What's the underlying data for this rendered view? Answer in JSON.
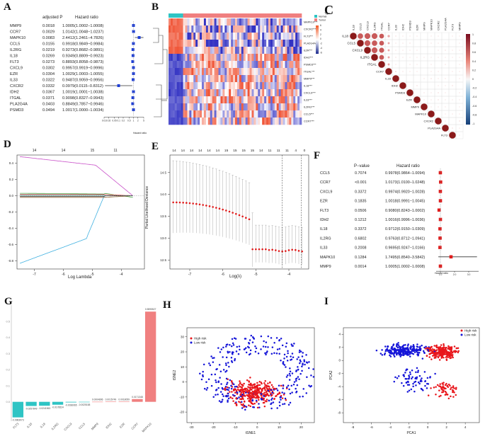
{
  "panel_labels": {
    "A": "A",
    "B": "B",
    "C": "C",
    "D": "D",
    "E": "E",
    "F": "F",
    "G": "G",
    "H": "H",
    "I": "I"
  },
  "A": {
    "header": {
      "p": "adjusted P",
      "hr": "Hazard ratio"
    },
    "axis_label": "Hazard ratio",
    "rows": [
      {
        "gene": "MMP9",
        "p": "0.0018",
        "hr": "1.0005(1.0002−1.0008)",
        "est": 1.0005,
        "lo": 1.0002,
        "hi": 1.0008
      },
      {
        "gene": "CCR7",
        "p": "0.0029",
        "hr": "1.0142(1.0048−1.0237)",
        "est": 1.0142,
        "lo": 1.0048,
        "hi": 1.0237
      },
      {
        "gene": "MAPK10",
        "p": "0.0083",
        "hr": "2.4412(1.2461−4.7826)",
        "est": 2.4412,
        "lo": 1.2461,
        "hi": 4.7826
      },
      {
        "gene": "CCL5",
        "p": "0.0155",
        "hr": "0.9918(0.9849−0.9984)",
        "est": 0.9918,
        "lo": 0.9849,
        "hi": 0.9984
      },
      {
        "gene": "IL2RG",
        "p": "0.0219",
        "hr": "0.9273(0.8682−0.9891)",
        "est": 0.9273,
        "lo": 0.8682,
        "hi": 0.9891
      },
      {
        "gene": "IL18",
        "p": "0.0269",
        "hr": "0.9349(0.8809−0.9923)",
        "est": 0.9349,
        "lo": 0.8809,
        "hi": 0.9923
      },
      {
        "gene": "FLT3",
        "p": "0.0273",
        "hr": "0.8893(0.8058−0.9873)",
        "est": 0.8893,
        "lo": 0.8058,
        "hi": 0.9873
      },
      {
        "gene": "CXCL9",
        "p": "0.0302",
        "hr": "0.9957(0.9919−0.9996)",
        "est": 0.9957,
        "lo": 0.9919,
        "hi": 0.9996
      },
      {
        "gene": "EZR",
        "p": "0.0304",
        "hr": "1.0029(1.0003−1.0055)",
        "est": 1.0029,
        "lo": 1.0003,
        "hi": 1.0055
      },
      {
        "gene": "IL33",
        "p": "0.0322",
        "hr": "0.9487(0.9059−0.9956)",
        "est": 0.9487,
        "lo": 0.9059,
        "hi": 0.9956
      },
      {
        "gene": "CXCR2",
        "p": "0.0332",
        "hr": "0.0979(0.0115−0.8312)",
        "est": 0.0979,
        "lo": 0.0115,
        "hi": 0.8312
      },
      {
        "gene": "IDH2",
        "p": "0.0367",
        "hr": "1.0019(1.0001−1.0038)",
        "est": 1.0019,
        "lo": 1.0001,
        "hi": 1.0038
      },
      {
        "gene": "ITGAL",
        "p": "0.0371",
        "hr": "0.9098(0.8327−0.9943)",
        "est": 0.9098,
        "lo": 0.8327,
        "hi": 0.9943
      },
      {
        "gene": "PLA2G4A",
        "p": "0.0403",
        "hr": "0.8849(0.7857−0.9946)",
        "est": 0.8849,
        "lo": 0.7857,
        "hi": 0.9946
      },
      {
        "gene": "PSMD3",
        "p": "0.0494",
        "hr": "1.0017(1.0000−1.0034)",
        "est": 1.0017,
        "lo": 1.0,
        "hi": 1.0034
      }
    ],
    "ticks": [
      "0.01",
      "0.02",
      "0.05",
      "0.1",
      "0.2",
      "0.5",
      "1",
      "2",
      "5"
    ]
  },
  "B": {
    "legend_title": "Type",
    "legend_items": [
      {
        "label": "Normal",
        "color": "#2ec4c4"
      },
      {
        "label": "Tumor",
        "color": "#f07f7f"
      }
    ],
    "scale_ticks": [
      "6",
      "4",
      "2",
      "0",
      "-2",
      "-4",
      "-6"
    ],
    "genes": [
      "MAPK10***",
      "CXCR2***",
      "FLT3***",
      "PLA2G4A***",
      "EZR***",
      "IDH2***",
      "PSMD3***",
      "ITGAL***",
      "MMP9***",
      "IL18***",
      "CXCL9***",
      "IL33***",
      "IL2RG***",
      "CCL5***",
      "CCR7***"
    ]
  },
  "C": {
    "genes": [
      "IL18",
      "CCL5",
      "CXCL9",
      "IL2RG",
      "ITGAL",
      "CCR7",
      "IL33",
      "IDH2",
      "PSMD3",
      "EZR",
      "MMP9",
      "MAPK10",
      "CXCR2",
      "PLA2G4A",
      "FLT3",
      "MMP9"
    ],
    "scale_ticks": [
      "1",
      "0.8",
      "0.6",
      "0.4",
      "0.2",
      "0",
      "-0.2",
      "-0.4",
      "-0.6",
      "-0.8",
      "-1"
    ]
  },
  "D": {
    "xlabel": "Log Lambda",
    "top_ticks": [
      "14",
      "14",
      "15",
      "11"
    ],
    "x_ticks": [
      "-7",
      "-6",
      "-5",
      "-4"
    ],
    "y_ticks": [
      "0.4",
      "0.2",
      "0.0",
      "-0.2",
      "-0.4",
      "-0.6",
      "-0.8"
    ]
  },
  "E": {
    "xlabel": "Log(λ)",
    "ylabel": "Partial Likelihood Deviance",
    "top_ticks": [
      "14",
      "14",
      "14",
      "14",
      "14",
      "14",
      "15",
      "15",
      "15",
      "15",
      "14",
      "11",
      "11",
      "11",
      "4",
      "0"
    ],
    "x_ticks": [
      "-7",
      "-6",
      "-5",
      "-4"
    ],
    "y_ticks": [
      "14.5",
      "14.0",
      "13.5",
      "13.0",
      "12.5"
    ]
  },
  "F": {
    "header": {
      "p": "P−value",
      "hr": "Hazard ratio"
    },
    "axis_label": "Hazard ratio",
    "ticks": [
      "1.0",
      "2.0",
      "3.0"
    ],
    "rows": [
      {
        "gene": "CCL5",
        "p": "0.7074",
        "hr": "0.9978(0.9864−1.0094)",
        "est": 0.9978,
        "lo": 0.9864,
        "hi": 1.0094
      },
      {
        "gene": "CCR7",
        "p": "<0.001",
        "hr": "1.0173(1.0100−1.0248)",
        "est": 1.0173,
        "lo": 1.01,
        "hi": 1.0248
      },
      {
        "gene": "CXCL9",
        "p": "0.3372",
        "hr": "0.9974(0.9920−1.0028)",
        "est": 0.9974,
        "lo": 0.992,
        "hi": 1.0028
      },
      {
        "gene": "EZR",
        "p": "0.1835",
        "hr": "1.0018(0.9991−1.0045)",
        "est": 1.0018,
        "lo": 0.9991,
        "hi": 1.0045
      },
      {
        "gene": "FLT3",
        "p": "0.0506",
        "hr": "0.9080(0.8243−1.0002)",
        "est": 0.908,
        "lo": 0.8243,
        "hi": 1.0002
      },
      {
        "gene": "IDH2",
        "p": "0.1212",
        "hr": "1.0016(0.9996−1.0036)",
        "est": 1.0016,
        "lo": 0.9996,
        "hi": 1.0036
      },
      {
        "gene": "IL18",
        "p": "0.3372",
        "hr": "0.9712(0.9150−1.0309)",
        "est": 0.9712,
        "lo": 0.915,
        "hi": 1.0309
      },
      {
        "gene": "IL2RG",
        "p": "0.6802",
        "hr": "0.9763(0.8712−1.0941)",
        "est": 0.9763,
        "lo": 0.8712,
        "hi": 1.0941
      },
      {
        "gene": "IL33",
        "p": "0.2008",
        "hr": "0.9695(0.9247−1.0166)",
        "est": 0.9695,
        "lo": 0.9247,
        "hi": 1.0166
      },
      {
        "gene": "MAPK10",
        "p": "0.1284",
        "hr": "1.7495(0.8540−3.5842)",
        "est": 1.7495,
        "lo": 0.854,
        "hi": 3.5842
      },
      {
        "gene": "MMP9",
        "p": "0.0014",
        "hr": "1.0005(1.0002−1.0008)",
        "est": 1.0005,
        "lo": 1.0002,
        "hi": 1.0008
      }
    ]
  },
  "chart_data": [
    {
      "type": "bar",
      "panel": "G",
      "title": "",
      "categories": [
        "FLT3",
        "IL33",
        "IL18",
        "IL2RG",
        "CXCL9",
        "CCL5",
        "MMP9",
        "IDH2",
        "EZR",
        "CCR7",
        "MAPK10"
      ],
      "values": [
        -0.0963973,
        -0.0257849,
        -0.0241963,
        -0.0178524,
        -0.0036065,
        -0.0025158,
        0.0004896,
        0.0015749,
        0.0018059,
        0.0171348,
        0.5595527
      ],
      "labels": [
        "-0.0963973",
        "-0.0257849",
        "-0.0241963",
        "-0.0178524",
        "-0.0036065",
        "-0.0025158",
        "0.0004896",
        "0.0015749",
        "0.0018059",
        "0.0171348",
        "0.5595527"
      ],
      "colors": [
        "#2ec4c4",
        "#2ec4c4",
        "#2ec4c4",
        "#2ec4c4",
        "#2ec4c4",
        "#2ec4c4",
        "#f08080",
        "#f08080",
        "#f08080",
        "#f08080",
        "#f08080"
      ],
      "y_ticks": [
        "0.5",
        "0.4",
        "0.3",
        "0.2",
        "0.1",
        "0.0"
      ],
      "ylim": [
        -0.12,
        0.6
      ]
    },
    {
      "type": "scatter",
      "panel": "H",
      "xlabel": "tSNE1",
      "ylabel": "tSNE2",
      "x_ticks": [
        "-30",
        "-20",
        "-10",
        "0",
        "10",
        "20"
      ],
      "y_ticks": [
        "30",
        "20",
        "10",
        "0",
        "-10",
        "-20"
      ],
      "xlim": [
        -32,
        26
      ],
      "ylim": [
        -27,
        36
      ],
      "legend": [
        {
          "name": "High risk",
          "color": "#e8161b"
        },
        {
          "name": "Low risk",
          "color": "#1515d8"
        }
      ],
      "n_points_per_series": 320
    },
    {
      "type": "scatter",
      "panel": "I",
      "xlabel": "PCA1",
      "ylabel": "PCA2",
      "x_ticks": [
        "-8",
        "-6",
        "-4",
        "-2",
        "0",
        "2",
        "4"
      ],
      "y_ticks": [
        "4",
        "2",
        "0",
        "-2",
        "-4",
        "-6",
        "-8"
      ],
      "xlim": [
        -9,
        5.5
      ],
      "ylim": [
        -9.5,
        5
      ],
      "legend": [
        {
          "name": "High risk",
          "color": "#e8161b"
        },
        {
          "name": "Low risk",
          "color": "#1515d8"
        }
      ],
      "n_points_per_series": 320
    }
  ]
}
